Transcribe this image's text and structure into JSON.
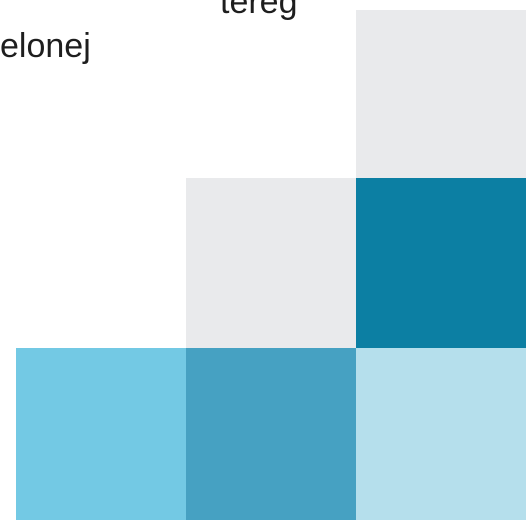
{
  "text": {
    "line_1": "tereg",
    "line_2": "elonej"
  },
  "tiles": {
    "top_right": {
      "color": "#e9eaec"
    },
    "mid_center": {
      "color": "#e9eaec"
    },
    "mid_right": {
      "color": "#0c7fa3"
    },
    "bot_left": {
      "color": "#73c9e4"
    },
    "bot_center": {
      "color": "#46a1c2"
    },
    "bot_right": {
      "color": "#b5dfec"
    }
  }
}
